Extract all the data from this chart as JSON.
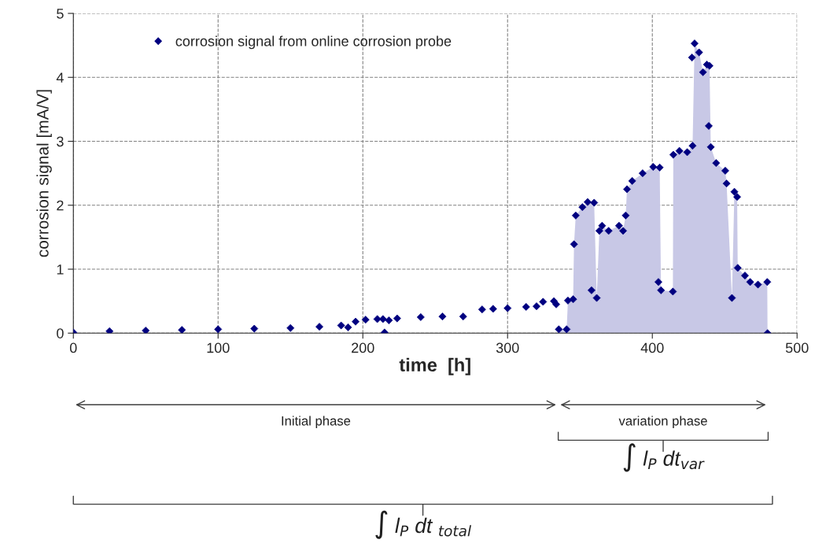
{
  "chart_data": {
    "type": "scatter",
    "xlabel": "time  [h]",
    "ylabel": "corrosion signal [mA/V]",
    "xlim": [
      0,
      500
    ],
    "ylim": [
      0,
      5
    ],
    "xticks": [
      0,
      100,
      200,
      300,
      400,
      500
    ],
    "yticks": [
      0,
      1,
      2,
      3,
      4,
      5
    ],
    "grid": true,
    "legend": "top left",
    "series": [
      {
        "name": "corrosion signal from online corrosion probe",
        "marker": "diamond",
        "color": "#000080",
        "x": [
          0,
          25,
          50,
          75,
          100,
          125,
          150,
          170,
          185,
          189.8,
          195,
          201.9,
          210,
          213.9,
          215,
          218,
          223.7,
          240,
          255,
          269.3,
          282.4,
          290,
          300,
          312.8,
          320,
          324.5,
          332,
          333.6,
          335.4,
          340.8,
          341.7,
          345.3,
          345.9,
          347.1,
          351.7,
          355.3,
          358,
          359.8,
          361.6,
          363.4,
          365.3,
          369.8,
          377,
          379.8,
          381.6,
          382.5,
          386.1,
          393.3,
          400.6,
          404.2,
          405.1,
          406,
          414.2,
          414.5,
          418.7,
          424.1,
          427.4,
          427.8,
          429.2,
          432.3,
          435,
          437.7,
          439,
          439.5,
          440.4,
          444.1,
          450.4,
          451.3,
          455,
          456.7,
          458.6,
          459,
          464,
          467.6,
          473,
          479.4,
          479.6
        ],
        "values": [
          0.01,
          0.03,
          0.04,
          0.05,
          0.06,
          0.07,
          0.08,
          0.1,
          0.12,
          0.09,
          0.18,
          0.21,
          0.22,
          0.22,
          0.01,
          0.2,
          0.23,
          0.25,
          0.26,
          0.26,
          0.37,
          0.38,
          0.39,
          0.41,
          0.42,
          0.49,
          0.5,
          0.45,
          0.06,
          0.06,
          0.51,
          0.53,
          1.39,
          1.84,
          1.97,
          2.05,
          0.67,
          2.04,
          0.55,
          1.6,
          1.68,
          1.6,
          1.68,
          1.6,
          1.84,
          2.25,
          2.38,
          2.5,
          2.6,
          0.8,
          2.59,
          0.67,
          0.65,
          2.79,
          2.85,
          2.83,
          4.31,
          2.93,
          4.53,
          4.39,
          4.08,
          4.2,
          3.24,
          4.18,
          2.91,
          2.66,
          2.54,
          2.34,
          0.55,
          2.21,
          2.13,
          1.02,
          0.9,
          0.8,
          0.76,
          0.8,
          0.0
        ]
      },
      {
        "type": "area",
        "color": "#c8c8e6",
        "x": [
          335.4,
          340.8,
          341.7,
          345.3,
          345.9,
          347.1,
          351.7,
          355.3,
          359.8,
          361.6,
          363.4,
          365.3,
          369.8,
          377,
          379.8,
          381.6,
          382.5,
          386.1,
          393.3,
          400.6,
          405.1,
          406,
          414.2,
          414.5,
          418.7,
          424.1,
          427.8,
          429.2,
          432.3,
          435,
          437.7,
          439.5,
          440.4,
          444.1,
          450.4,
          451.3,
          455,
          456.7,
          458.6,
          459,
          464,
          467.6,
          473,
          479.4,
          479.6
        ],
        "values": [
          0.06,
          0.06,
          0.51,
          0.53,
          1.39,
          1.84,
          1.97,
          2.05,
          2.04,
          0.55,
          1.6,
          1.68,
          1.6,
          1.68,
          1.6,
          1.84,
          2.25,
          2.38,
          2.5,
          2.6,
          2.59,
          0.67,
          0.65,
          2.79,
          2.85,
          2.83,
          2.93,
          4.53,
          4.39,
          4.08,
          4.2,
          4.18,
          2.91,
          2.66,
          2.54,
          2.34,
          0.55,
          2.21,
          2.13,
          1.02,
          0.9,
          0.8,
          0.76,
          0.8,
          0.0
        ]
      }
    ],
    "annotations": [
      "Initial phase",
      "variation phase",
      "∫ l$_{P}$ dt$_{var}$",
      "∫ l$_{P}$ dt $_{total}$"
    ]
  }
}
